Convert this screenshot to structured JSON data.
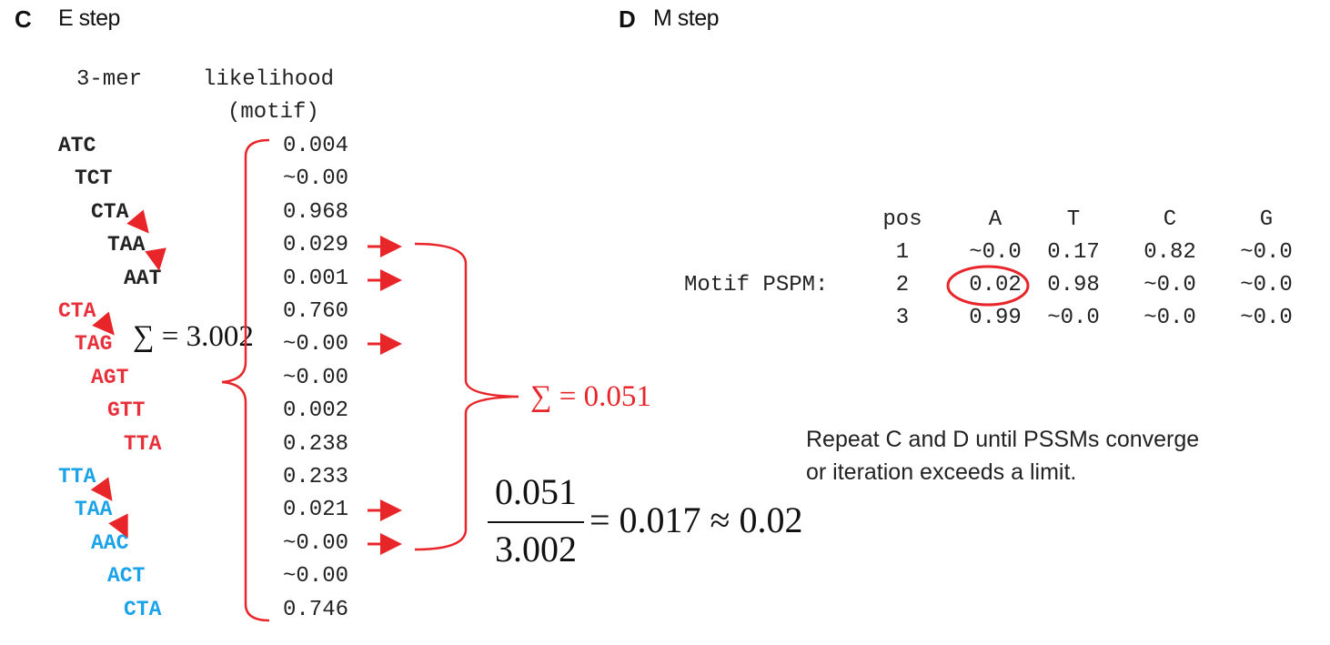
{
  "panelC": {
    "letter": "C",
    "title": "E step",
    "header_kmer": "3-mer",
    "header_likelihood": "likelihood",
    "header_motif": "(motif)",
    "rows": [
      {
        "kmer": "ATC",
        "likelihood": "0.004",
        "color": "#222222"
      },
      {
        "kmer": "TCT",
        "likelihood": "~0.00",
        "color": "#222222"
      },
      {
        "kmer": "CTA",
        "likelihood": "0.968",
        "color": "#222222"
      },
      {
        "kmer": "TAA",
        "likelihood": "0.029",
        "color": "#222222"
      },
      {
        "kmer": "AAT",
        "likelihood": "0.001",
        "color": "#222222"
      },
      {
        "kmer": "CTA",
        "likelihood": "0.760",
        "color": "#e8303a"
      },
      {
        "kmer": "TAG",
        "likelihood": "~0.00",
        "color": "#e8303a"
      },
      {
        "kmer": "AGT",
        "likelihood": "~0.00",
        "color": "#e8303a"
      },
      {
        "kmer": "GTT",
        "likelihood": "0.002",
        "color": "#e8303a"
      },
      {
        "kmer": "TTA",
        "likelihood": "0.238",
        "color": "#e8303a"
      },
      {
        "kmer": "TTA",
        "likelihood": "0.233",
        "color": "#1aa3e8"
      },
      {
        "kmer": "TAA",
        "likelihood": "0.021",
        "color": "#1aa3e8"
      },
      {
        "kmer": "AAC",
        "likelihood": "~0.00",
        "color": "#1aa3e8"
      },
      {
        "kmer": "ACT",
        "likelihood": "~0.00",
        "color": "#1aa3e8"
      },
      {
        "kmer": "CTA",
        "likelihood": "0.746",
        "color": "#1aa3e8"
      }
    ],
    "sum_total": "∑ = 3.002",
    "sum_selected": "∑ = 0.051",
    "fraction_numerator": "0.051",
    "fraction_denominator": "3.002",
    "fraction_result": "= 0.017 ≈ 0.02"
  },
  "panelD": {
    "letter": "D",
    "title": "M step",
    "pspm_label": "Motif PSPM:",
    "headers": [
      "pos",
      "A",
      "T",
      "C",
      "G"
    ],
    "rows": [
      [
        "1",
        "~0.0",
        "0.17",
        "0.82",
        "~0.0"
      ],
      [
        "2",
        "0.02",
        "0.98",
        "~0.0",
        "~0.0"
      ],
      [
        "3",
        "0.99",
        "~0.0",
        "~0.0",
        "~0.0"
      ]
    ],
    "note_line1": "Repeat C and D until PSSMs converge",
    "note_line2": "or iteration exceeds a limit."
  },
  "colors": {
    "annotation_red": "#e8262a",
    "motif_red": "#e8303a",
    "motif_blue": "#1aa3e8",
    "text": "#222222"
  }
}
